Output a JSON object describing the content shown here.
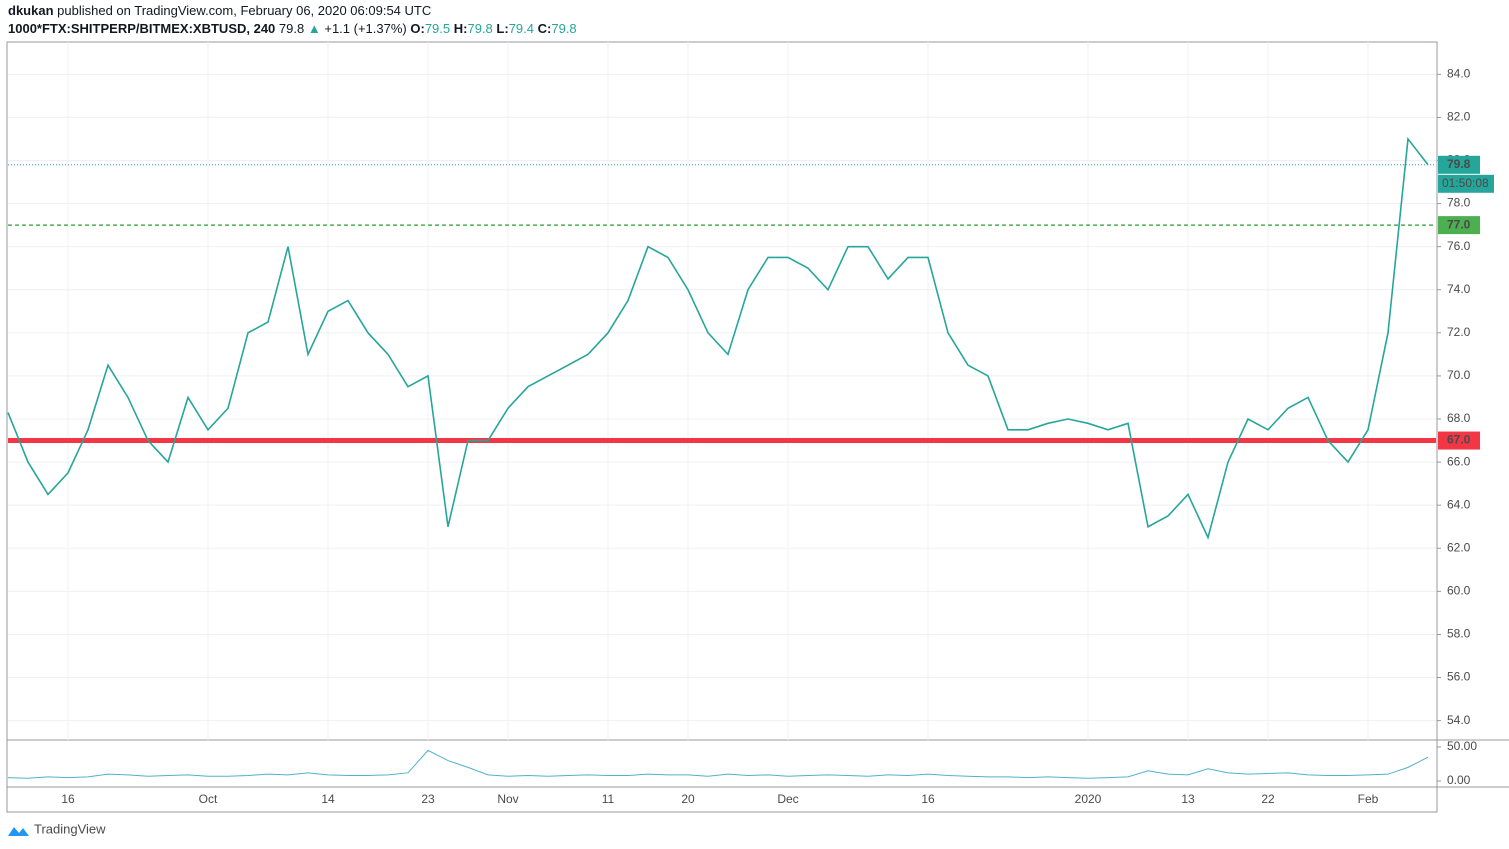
{
  "header": {
    "author": "dkukan",
    "published": "published on TradingView.com, February 06, 2020 06:09:54 UTC",
    "symbol": "1000*FTX:SHITPERP/BITMEX:XBTUSD, 240",
    "last": "79.8",
    "arrow": "▲",
    "change": "+1.1 (+1.37%)",
    "o_label": "O:",
    "o": "79.5",
    "h_label": "H:",
    "h": "79.8",
    "l_label": "L:",
    "l": "79.4",
    "c_label": "C:",
    "c": "79.8"
  },
  "footer": {
    "brand": "TradingView"
  },
  "chart_data": [
    {
      "type": "line",
      "color": "#26a69a",
      "categories": [
        null,
        null,
        null,
        "16",
        null,
        null,
        null,
        null,
        null,
        null,
        "Oct",
        null,
        null,
        null,
        null,
        null,
        "14",
        null,
        null,
        null,
        null,
        "23",
        null,
        null,
        null,
        "Nov",
        null,
        null,
        null,
        null,
        "11",
        null,
        null,
        null,
        "20",
        null,
        null,
        null,
        null,
        "Dec",
        null,
        null,
        null,
        null,
        null,
        null,
        "16",
        null,
        null,
        null,
        null,
        null,
        null,
        null,
        "2020",
        null,
        null,
        null,
        null,
        "13",
        null,
        null,
        null,
        "22",
        null,
        null,
        null,
        null,
        "Feb",
        null,
        null,
        null
      ],
      "values": [
        68.3,
        66,
        64.5,
        65.5,
        67.5,
        70.5,
        69,
        67,
        66,
        69,
        67.5,
        68.5,
        72,
        72.5,
        76,
        71,
        73,
        73.5,
        72,
        71,
        69.5,
        70,
        63,
        67,
        67,
        68.5,
        69.5,
        70,
        70.5,
        71,
        72,
        73.5,
        76,
        75.5,
        74,
        72,
        71,
        74,
        75.5,
        75.5,
        75,
        74,
        76,
        76,
        74.5,
        75.5,
        75.5,
        72,
        70.5,
        70,
        67.5,
        67.5,
        67.8,
        68,
        67.8,
        67.5,
        67.8,
        63,
        63.5,
        64.5,
        62.5,
        66,
        68,
        67.5,
        68.5,
        69,
        67,
        66,
        67.5,
        72,
        81,
        79.8
      ],
      "ylim": [
        53.1,
        85.5
      ],
      "yticks": [
        {
          "value": 54,
          "label": "54.0"
        },
        {
          "value": 56,
          "label": "56.0"
        },
        {
          "value": 58,
          "label": "58.0"
        },
        {
          "value": 60,
          "label": "60.0"
        },
        {
          "value": 62,
          "label": "62.0"
        },
        {
          "value": 64,
          "label": "64.0"
        },
        {
          "value": 66,
          "label": "66.0"
        },
        {
          "value": 68,
          "label": "68.0"
        },
        {
          "value": 70,
          "label": "70.0"
        },
        {
          "value": 72,
          "label": "72.0"
        },
        {
          "value": 74,
          "label": "74.0"
        },
        {
          "value": 76,
          "label": "76.0"
        },
        {
          "value": 78,
          "label": "78.0"
        },
        {
          "value": 80,
          "label": "80.0"
        },
        {
          "value": 82,
          "label": "82.0"
        },
        {
          "value": 84,
          "label": "84.0"
        }
      ],
      "grid": true,
      "hlines": [
        {
          "value": 67,
          "label": "67.0",
          "color": "#f23645",
          "style": "solid"
        },
        {
          "value": 77,
          "label": "77.0",
          "color": "#4caf50",
          "style": "dashed"
        },
        {
          "value": 79.8,
          "label": "79.8",
          "color": "#26a69a",
          "style": "dotted"
        }
      ],
      "countdown": "01:50:08"
    },
    {
      "type": "line",
      "color": "#4fb3c7",
      "values": [
        5,
        4,
        6,
        5,
        6,
        10,
        9,
        7,
        8,
        9,
        7,
        7,
        8,
        10,
        9,
        12,
        9,
        8,
        8,
        9,
        12,
        45,
        30,
        20,
        9,
        7,
        8,
        7,
        8,
        9,
        8,
        8,
        10,
        9,
        9,
        7,
        10,
        8,
        9,
        7,
        8,
        9,
        8,
        7,
        9,
        8,
        10,
        8,
        7,
        6,
        6,
        5,
        6,
        5,
        4,
        5,
        6,
        15,
        10,
        9,
        18,
        12,
        10,
        11,
        12,
        9,
        8,
        8,
        9,
        10,
        20,
        35
      ],
      "ylim": [
        -7.4,
        60.3
      ],
      "yticks": [
        {
          "value": 0,
          "label": "0.00"
        },
        {
          "value": 50,
          "label": "50.00"
        }
      ]
    }
  ]
}
